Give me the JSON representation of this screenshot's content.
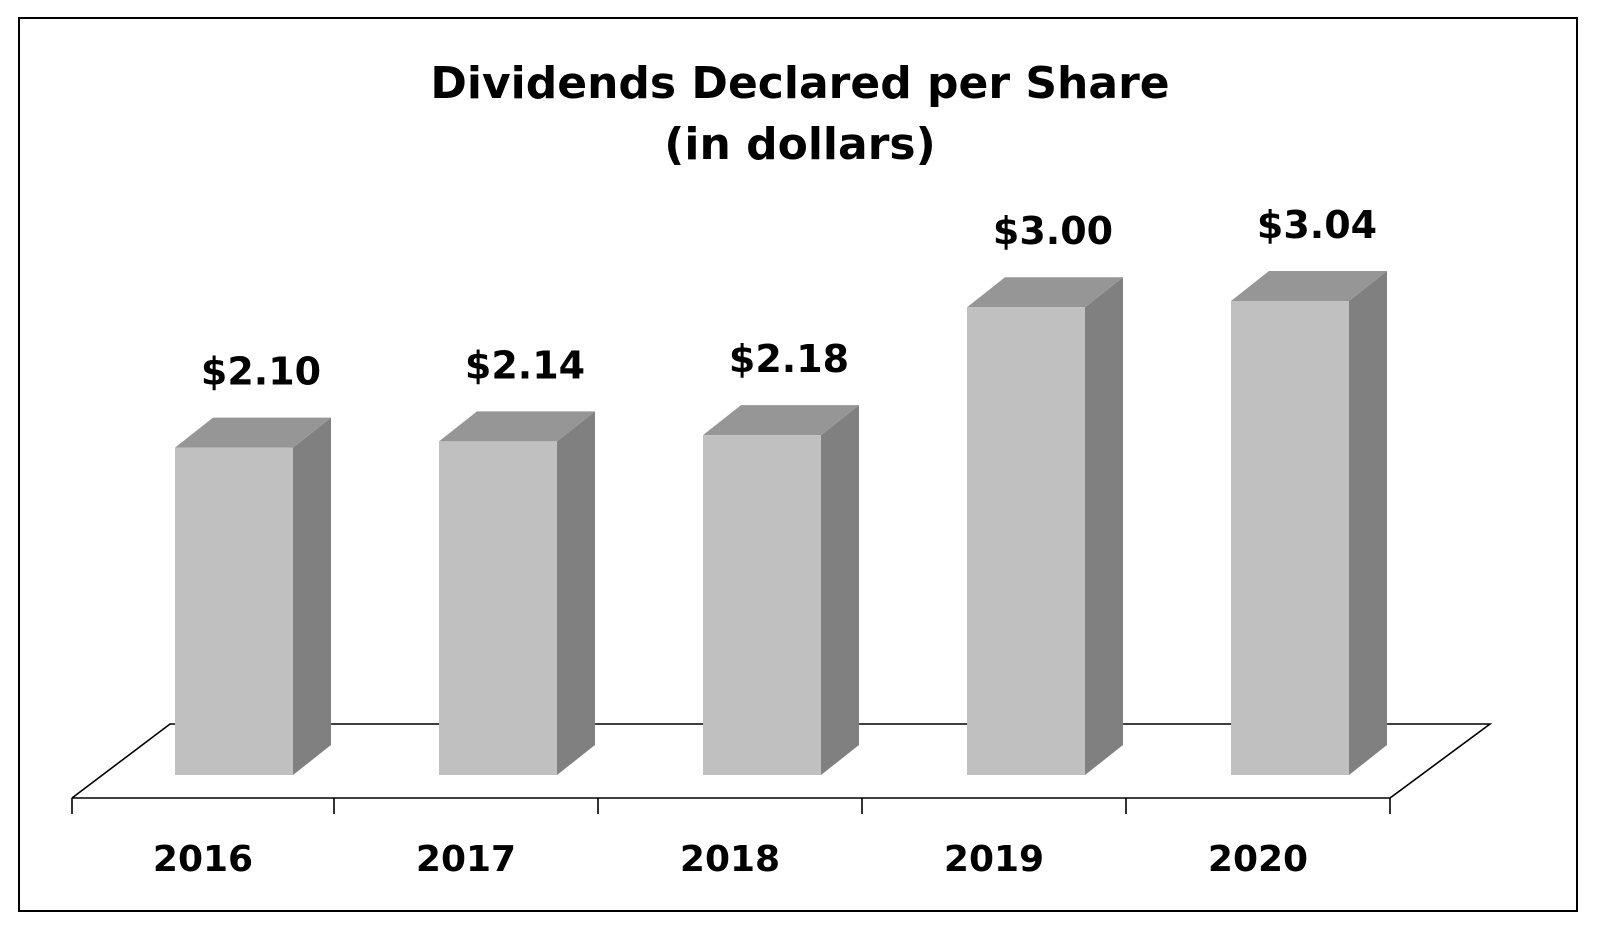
{
  "chart_data": {
    "type": "bar",
    "title_line1": "Dividends Declared per Share",
    "title_line2": "(in dollars)",
    "categories": [
      "2016",
      "2017",
      "2018",
      "2019",
      "2020"
    ],
    "values": [
      2.1,
      2.14,
      2.18,
      3.0,
      3.04
    ],
    "data_labels": [
      "$2.10",
      "$2.14",
      "$2.18",
      "$3.00",
      "$3.04"
    ],
    "xlabel": "",
    "ylabel": "",
    "ylim": [
      0,
      3.04
    ],
    "grid": false,
    "legend": "none",
    "colors": {
      "front": "#c0c0c0",
      "side": "#808080",
      "top": "#969696"
    }
  }
}
